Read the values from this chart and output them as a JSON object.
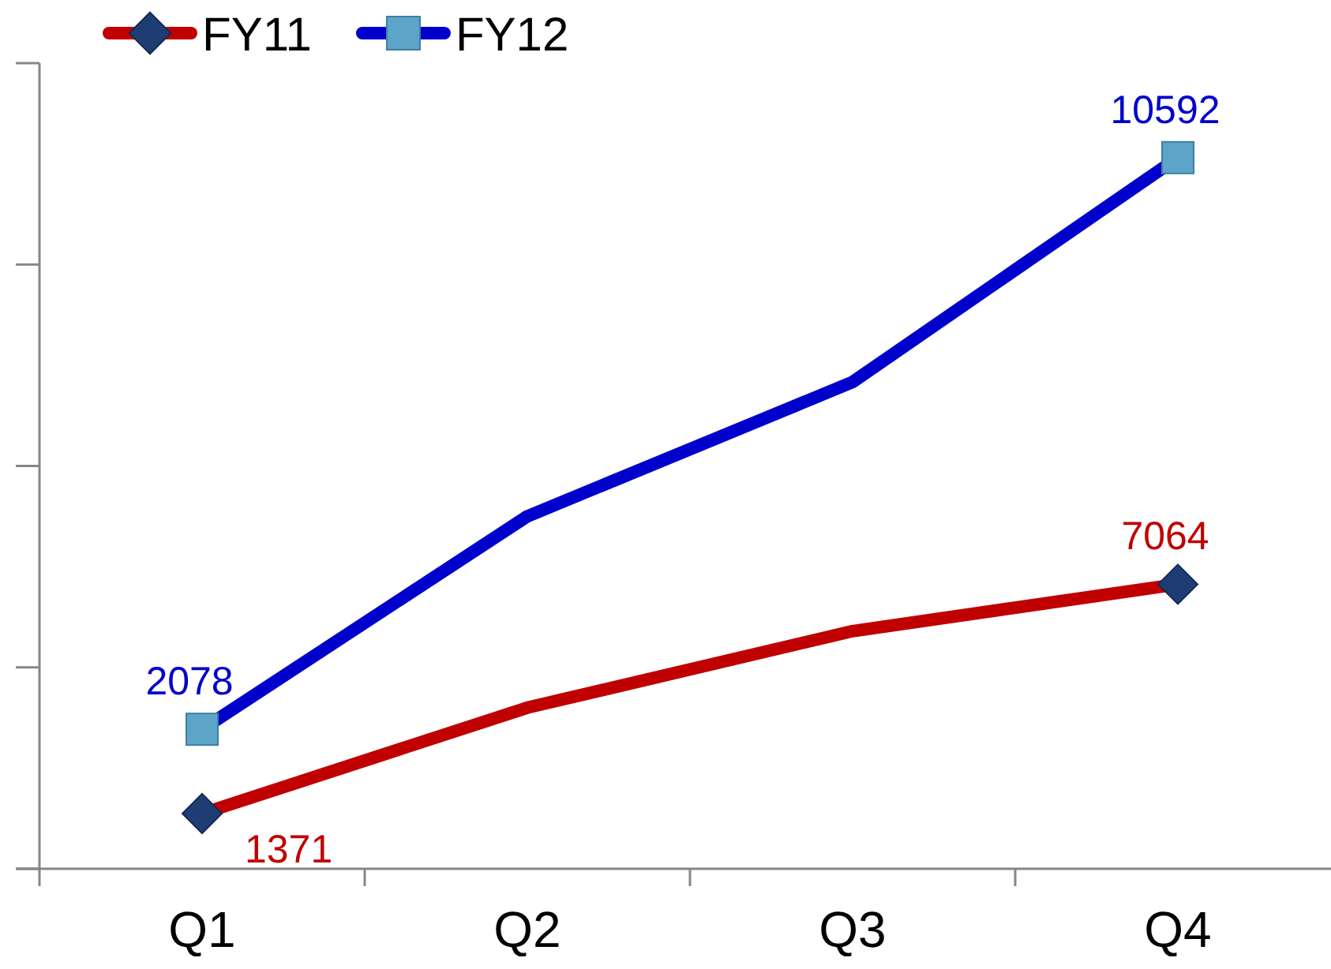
{
  "chart_data": {
    "type": "line",
    "categories": [
      "Q1",
      "Q2",
      "Q3",
      "Q4"
    ],
    "series": [
      {
        "name": "FY11",
        "color": "#c00000",
        "marker": "diamond",
        "axis": "y2",
        "values": [
          1371,
          4000,
          5900,
          7064
        ],
        "value_labels": [
          "1371",
          null,
          null,
          "7064"
        ]
      },
      {
        "name": "FY12",
        "color": "#0000cc",
        "marker": "square",
        "values": [
          2078,
          5250,
          7250,
          10592
        ],
        "value_labels": [
          "2078",
          null,
          null,
          "10592"
        ]
      }
    ],
    "ylim": [
      0,
      12000
    ],
    "yticks": [
      {
        "value": 0,
        "label": null
      },
      {
        "value": 3000,
        "label": null
      },
      {
        "value": 6000,
        "label": null
      },
      {
        "value": 9000,
        "label": null
      },
      {
        "value": 12000,
        "label": null
      }
    ],
    "y2lim": [
      0,
      20000
    ],
    "tick_labels": "x",
    "legend": "top left"
  }
}
